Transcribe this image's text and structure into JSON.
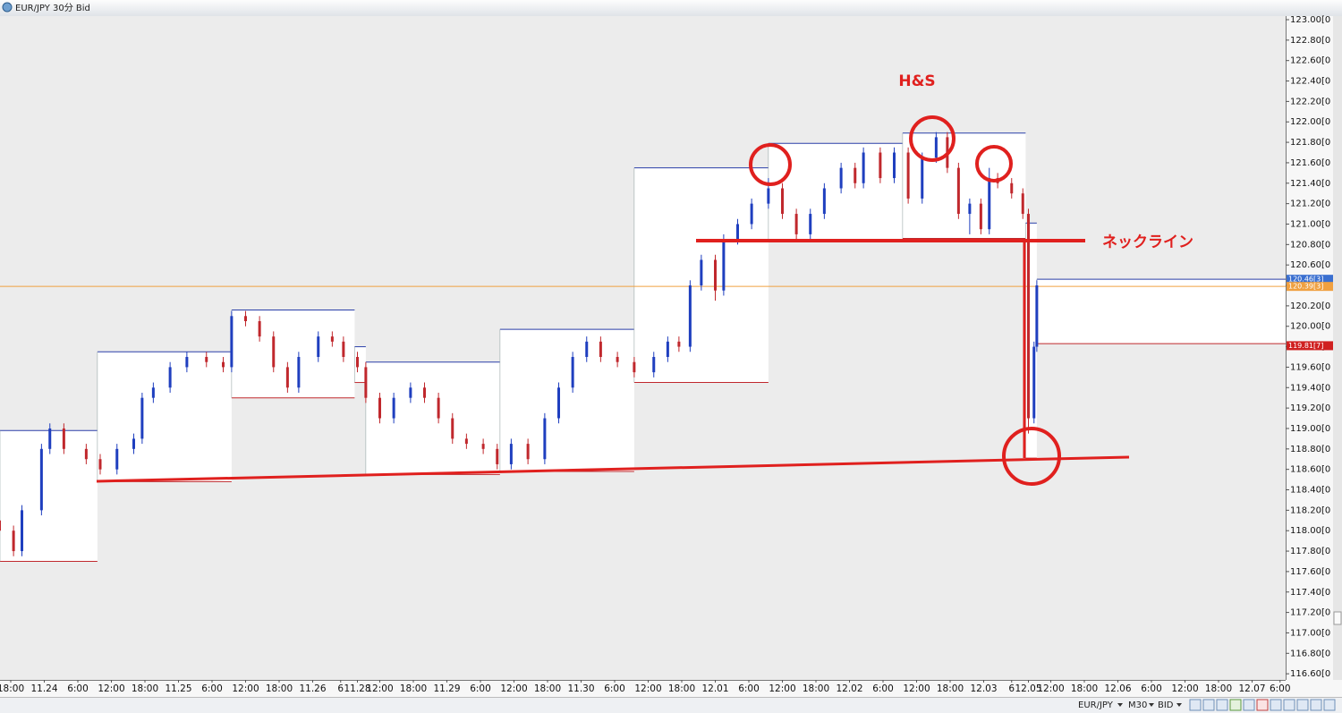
{
  "window": {
    "title": "EUR/JPY 30分 Bid"
  },
  "chart_data": {
    "type": "candlestick",
    "up_color": "#1f3fbf",
    "down_color": "#c0282d",
    "x": [
      -4,
      1,
      4,
      11,
      14,
      19,
      27,
      32,
      38,
      44,
      47,
      51,
      57,
      63,
      70,
      76,
      79,
      84,
      89,
      94,
      99,
      103,
      110,
      115,
      119,
      124,
      127,
      132,
      137,
      143,
      148,
      153,
      158,
      163,
      169,
      174,
      179,
      185,
      191,
      196,
      201,
      206,
      211,
      217,
      223,
      230,
      235,
      239,
      243,
      247,
      252,
      255,
      260,
      265,
      271,
      276,
      281,
      286,
      291,
      297,
      302,
      305,
      311,
      316,
      321,
      326,
      331,
      335,
      339,
      343,
      347,
      350,
      353,
      358,
      362,
      364,
      366,
      367
    ],
    "open": [
      118.1,
      118.0,
      117.8,
      118.2,
      118.8,
      119.0,
      118.8,
      118.7,
      118.6,
      118.8,
      118.9,
      119.3,
      119.4,
      119.6,
      119.7,
      119.65,
      119.6,
      120.1,
      120.05,
      119.9,
      119.6,
      119.4,
      119.7,
      119.9,
      119.85,
      119.7,
      119.6,
      119.3,
      119.1,
      119.3,
      119.4,
      119.3,
      119.1,
      118.9,
      118.85,
      118.8,
      118.65,
      118.85,
      118.7,
      119.1,
      119.4,
      119.7,
      119.85,
      119.7,
      119.65,
      119.55,
      119.7,
      119.85,
      119.8,
      120.4,
      120.65,
      120.35,
      120.85,
      121.0,
      121.2,
      121.35,
      121.1,
      120.9,
      121.1,
      121.35,
      121.55,
      121.4,
      121.7,
      121.45,
      121.7,
      121.25,
      121.65,
      121.85,
      121.55,
      121.1,
      121.2,
      120.95,
      121.45,
      121.4,
      121.3,
      121.1,
      119.1,
      119.8
    ],
    "high": [
      118.15,
      118.05,
      118.25,
      118.85,
      119.05,
      119.05,
      118.85,
      118.75,
      118.85,
      118.95,
      119.35,
      119.45,
      119.65,
      119.75,
      119.75,
      119.7,
      120.15,
      120.15,
      120.1,
      119.95,
      119.65,
      119.75,
      119.95,
      119.95,
      119.9,
      119.75,
      119.65,
      119.35,
      119.35,
      119.45,
      119.45,
      119.35,
      119.15,
      118.95,
      118.9,
      118.85,
      118.9,
      118.9,
      119.15,
      119.45,
      119.75,
      119.9,
      119.9,
      119.75,
      119.7,
      119.75,
      119.9,
      119.9,
      120.45,
      120.7,
      120.7,
      120.9,
      121.05,
      121.25,
      121.45,
      121.4,
      121.15,
      121.15,
      121.4,
      121.6,
      121.6,
      121.75,
      121.75,
      121.75,
      121.75,
      121.7,
      121.9,
      121.9,
      121.6,
      121.25,
      121.25,
      121.55,
      121.5,
      121.45,
      121.35,
      121.15,
      119.85,
      120.45
    ],
    "low": [
      117.95,
      117.75,
      117.75,
      118.15,
      118.75,
      118.75,
      118.65,
      118.55,
      118.55,
      118.75,
      118.85,
      119.25,
      119.35,
      119.55,
      119.6,
      119.55,
      119.55,
      120.0,
      119.85,
      119.55,
      119.35,
      119.35,
      119.65,
      119.8,
      119.65,
      119.55,
      119.25,
      119.05,
      119.05,
      119.25,
      119.25,
      119.05,
      118.85,
      118.8,
      118.75,
      118.6,
      118.6,
      118.65,
      118.65,
      119.05,
      119.35,
      119.65,
      119.65,
      119.6,
      119.5,
      119.5,
      119.65,
      119.75,
      119.75,
      120.35,
      120.25,
      120.3,
      120.8,
      120.95,
      121.15,
      121.05,
      120.85,
      120.85,
      121.05,
      121.3,
      121.35,
      121.35,
      121.4,
      121.4,
      121.2,
      121.2,
      121.6,
      121.5,
      121.05,
      120.9,
      120.9,
      120.9,
      121.35,
      121.25,
      121.05,
      118.95,
      119.05,
      119.75
    ],
    "close": [
      118.0,
      117.8,
      118.2,
      118.8,
      119.0,
      118.8,
      118.7,
      118.6,
      118.8,
      118.9,
      119.3,
      119.4,
      119.6,
      119.7,
      119.65,
      119.6,
      120.1,
      120.05,
      119.9,
      119.6,
      119.4,
      119.7,
      119.9,
      119.85,
      119.7,
      119.6,
      119.3,
      119.1,
      119.3,
      119.4,
      119.3,
      119.1,
      118.9,
      118.85,
      118.8,
      118.65,
      118.85,
      118.7,
      119.1,
      119.4,
      119.7,
      119.85,
      119.7,
      119.65,
      119.55,
      119.7,
      119.85,
      119.8,
      120.4,
      120.65,
      120.35,
      120.85,
      121.0,
      121.2,
      121.35,
      121.1,
      120.9,
      121.1,
      121.35,
      121.55,
      121.4,
      121.7,
      121.45,
      121.7,
      121.25,
      121.65,
      121.85,
      121.55,
      121.1,
      121.2,
      120.95,
      121.45,
      121.4,
      121.3,
      121.1,
      119.1,
      119.8,
      120.4
    ],
    "day_ranges": {
      "high_color": "#2a3fa8",
      "low_color": "#c0282d",
      "x0": [
        -3.84,
        31,
        79,
        123,
        127,
        175,
        223,
        271,
        319,
        363,
        367
      ],
      "x1": [
        31,
        79,
        123,
        127,
        175,
        223,
        271,
        319,
        363,
        367,
        456
      ],
      "high": [
        118.98,
        119.75,
        120.16,
        119.8,
        119.65,
        119.97,
        121.55,
        121.79,
        121.89,
        121.01,
        120.46
      ],
      "low": [
        117.7,
        118.48,
        119.3,
        119.45,
        118.55,
        118.58,
        119.45,
        120.85,
        120.86,
        118.71,
        119.83
      ]
    },
    "price_lines": [
      {
        "value": 120.46,
        "label": "120.46[3]",
        "color": "#3a6fd0"
      },
      {
        "value": 120.39,
        "label": "120.39[3]",
        "color": "#f0a040",
        "line": true
      },
      {
        "value": 119.81,
        "label": "119.81[7]",
        "color": "#d02020"
      }
    ],
    "annotations": {
      "pattern": "H&S",
      "neckline": "ネックライン"
    },
    "xlim": [
      -3.84,
      456
    ],
    "ylim": [
      116.54,
      123.035
    ],
    "xticks": [
      {
        "value": 0,
        "label": "18:00"
      },
      {
        "value": 12,
        "label": "11.24"
      },
      {
        "value": 24,
        "label": "6:00"
      },
      {
        "value": 36,
        "label": "12:00"
      },
      {
        "value": 48,
        "label": "18:00"
      },
      {
        "value": 60,
        "label": "11.25"
      },
      {
        "value": 72,
        "label": "6:00"
      },
      {
        "value": 84,
        "label": "12:00"
      },
      {
        "value": 96,
        "label": "18:00"
      },
      {
        "value": 108,
        "label": "11.26"
      },
      {
        "value": 118,
        "label": "6"
      },
      {
        "value": 124,
        "label": "11.28"
      },
      {
        "value": 132,
        "label": "12:00"
      },
      {
        "value": 144,
        "label": "18:00"
      },
      {
        "value": 156,
        "label": "11.29"
      },
      {
        "value": 168,
        "label": "6:00"
      },
      {
        "value": 180,
        "label": "12:00"
      },
      {
        "value": 192,
        "label": "18:00"
      },
      {
        "value": 204,
        "label": "11.30"
      },
      {
        "value": 216,
        "label": "6:00"
      },
      {
        "value": 228,
        "label": "12:00"
      },
      {
        "value": 240,
        "label": "18:00"
      },
      {
        "value": 252,
        "label": "12.01"
      },
      {
        "value": 264,
        "label": "6:00"
      },
      {
        "value": 276,
        "label": "12:00"
      },
      {
        "value": 288,
        "label": "18:00"
      },
      {
        "value": 300,
        "label": "12.02"
      },
      {
        "value": 312,
        "label": "6:00"
      },
      {
        "value": 324,
        "label": "12:00"
      },
      {
        "value": 336,
        "label": "18:00"
      },
      {
        "value": 348,
        "label": "12.03"
      },
      {
        "value": 358,
        "label": "6"
      },
      {
        "value": 364,
        "label": "12.05"
      },
      {
        "value": 372,
        "label": "12:00"
      },
      {
        "value": 384,
        "label": "18:00"
      },
      {
        "value": 396,
        "label": "12.06"
      },
      {
        "value": 408,
        "label": "6:00"
      },
      {
        "value": 420,
        "label": "12:00"
      },
      {
        "value": 432,
        "label": "18:00"
      },
      {
        "value": 444,
        "label": "12.07"
      },
      {
        "value": 454,
        "label": "6:00"
      }
    ],
    "yticks": [
      {
        "value": 123.0,
        "label": "123.00[0"
      },
      {
        "value": 122.8,
        "label": "122.80[0"
      },
      {
        "value": 122.6,
        "label": "122.60[0"
      },
      {
        "value": 122.4,
        "label": "122.40[0"
      },
      {
        "value": 122.2,
        "label": "122.20[0"
      },
      {
        "value": 122.0,
        "label": "122.00[0"
      },
      {
        "value": 121.8,
        "label": "121.80[0"
      },
      {
        "value": 121.6,
        "label": "121.60[0"
      },
      {
        "value": 121.4,
        "label": "121.40[0"
      },
      {
        "value": 121.2,
        "label": "121.20[0"
      },
      {
        "value": 121.0,
        "label": "121.00[0"
      },
      {
        "value": 120.8,
        "label": "120.80[0"
      },
      {
        "value": 120.6,
        "label": "120.60[0"
      },
      {
        "value": 120.4,
        "label": "120.40[0"
      },
      {
        "value": 120.2,
        "label": "120.20[0"
      },
      {
        "value": 120.0,
        "label": "120.00[0"
      },
      {
        "value": 119.8,
        "label": "119.80[0"
      },
      {
        "value": 119.6,
        "label": "119.60[0"
      },
      {
        "value": 119.4,
        "label": "119.40[0"
      },
      {
        "value": 119.2,
        "label": "119.20[0"
      },
      {
        "value": 119.0,
        "label": "119.00[0"
      },
      {
        "value": 118.8,
        "label": "118.80[0"
      },
      {
        "value": 118.6,
        "label": "118.60[0"
      },
      {
        "value": 118.4,
        "label": "118.40[0"
      },
      {
        "value": 118.2,
        "label": "118.20[0"
      },
      {
        "value": 118.0,
        "label": "118.00[0"
      },
      {
        "value": 117.8,
        "label": "117.80[0"
      },
      {
        "value": 117.6,
        "label": "117.60[0"
      },
      {
        "value": 117.4,
        "label": "117.40[0"
      },
      {
        "value": 117.2,
        "label": "117.20[0"
      },
      {
        "value": 117.0,
        "label": "117.00[0"
      },
      {
        "value": 116.8,
        "label": "116.80[0"
      },
      {
        "value": 116.6,
        "label": "116.60[0"
      }
    ]
  },
  "toolbar": {
    "symbol": "EUR/JPY",
    "timeframe": "M30",
    "side": "BID"
  }
}
